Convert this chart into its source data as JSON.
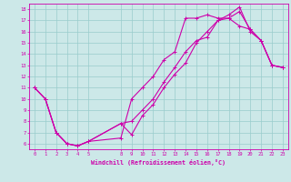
{
  "xlabel": "Windchill (Refroidissement éolien,°C)",
  "bg_color": "#cce8e8",
  "grid_color": "#99cccc",
  "line_color": "#cc00aa",
  "xlim": [
    -0.5,
    23.5
  ],
  "ylim": [
    5.5,
    18.5
  ],
  "xticks": [
    0,
    1,
    2,
    3,
    4,
    5,
    8,
    9,
    10,
    11,
    12,
    13,
    14,
    15,
    16,
    17,
    18,
    19,
    20,
    21,
    22,
    23
  ],
  "yticks": [
    6,
    7,
    8,
    9,
    10,
    11,
    12,
    13,
    14,
    15,
    16,
    17,
    18
  ],
  "line1_x": [
    0,
    1,
    2,
    3,
    4,
    5,
    8,
    9,
    10,
    11,
    12,
    13,
    14,
    15,
    16,
    17,
    18,
    19,
    20,
    21,
    22,
    23
  ],
  "line1_y": [
    11,
    10,
    7,
    6,
    5.8,
    6.2,
    6.5,
    10,
    11,
    12,
    13.5,
    14.2,
    17.2,
    17.2,
    17.5,
    17.2,
    17.2,
    16.5,
    16.2,
    15.2,
    13,
    12.8
  ],
  "line2_x": [
    0,
    1,
    2,
    3,
    4,
    5,
    8,
    9,
    10,
    11,
    12,
    13,
    14,
    15,
    16,
    17,
    18,
    19,
    20,
    21,
    22,
    23
  ],
  "line2_y": [
    11,
    10,
    7,
    6,
    5.8,
    6.2,
    7.8,
    6.8,
    8.5,
    9.5,
    11,
    12.2,
    13.2,
    15,
    16,
    17,
    17.5,
    18.2,
    16,
    15.2,
    13,
    12.8
  ],
  "line3_x": [
    0,
    1,
    2,
    3,
    4,
    5,
    8,
    9,
    10,
    11,
    12,
    13,
    14,
    15,
    16,
    17,
    18,
    19,
    20,
    21,
    22,
    23
  ],
  "line3_y": [
    11,
    10,
    7,
    6,
    5.8,
    6.2,
    7.8,
    8,
    9,
    10,
    11.5,
    12.8,
    14.2,
    15.2,
    15.5,
    17,
    17.2,
    17.8,
    16.2,
    15.2,
    13,
    12.8
  ],
  "marker_size": 2.5,
  "line_width": 0.8
}
